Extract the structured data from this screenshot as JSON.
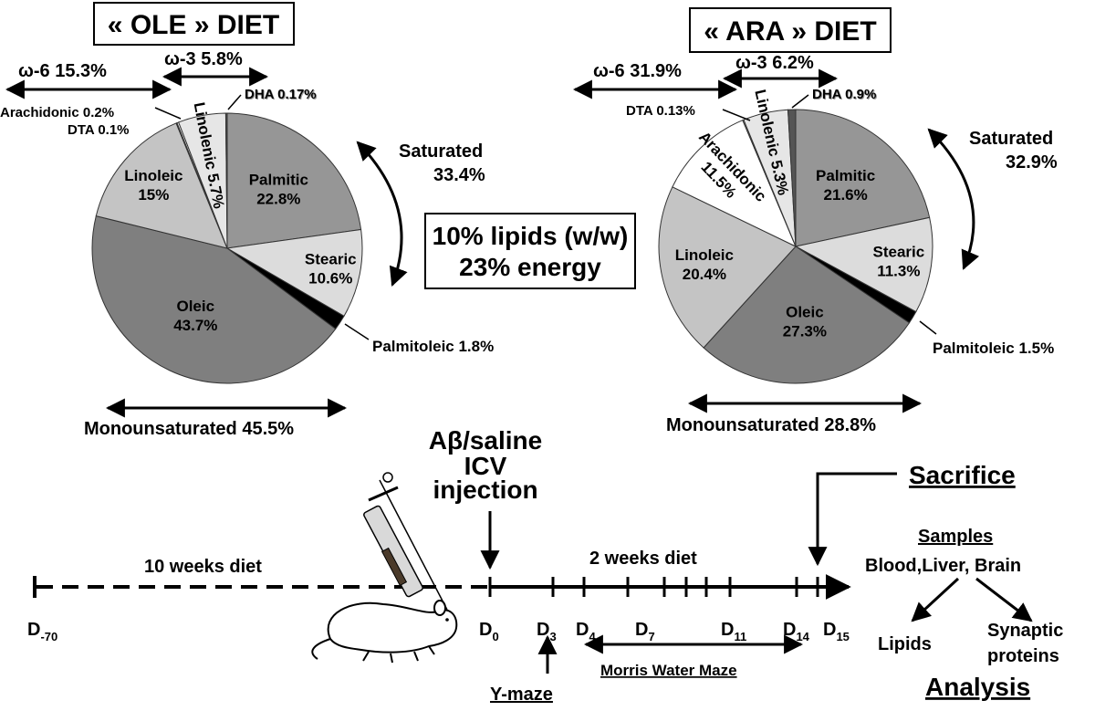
{
  "colors": {
    "palmitic": "#969696",
    "stearic": "#dcdcdc",
    "palmitoleic": "#000000",
    "oleic": "#7f7f7f",
    "linoleic": "#c4c4c4",
    "linolenic": "#e6e6e6",
    "arachidonic": "#ffffff",
    "dta": "#ffffff",
    "dha": "#555555"
  },
  "ole": {
    "title": "« OLE » DIET",
    "omega6": "ω-6 15.3%",
    "omega3": "ω-3 5.8%",
    "saturated": [
      "Saturated",
      "33.4%"
    ],
    "monounsaturated": "Monounsaturated 45.5%",
    "lipids": [
      "10% lipids (w/w)",
      "23% energy"
    ],
    "callouts": {
      "dha": "DHA 0.17%",
      "arachidonic": "Arachidonic 0.2%",
      "dta": "DTA 0.1%",
      "palmitoleic": "Palmitoleic 1.8%"
    },
    "slices": [
      {
        "key": "palmitic",
        "label": [
          "Palmitic",
          "22.8%"
        ],
        "value": 22.8,
        "color": "#969696"
      },
      {
        "key": "stearic",
        "label": [
          "Stearic",
          "10.6%"
        ],
        "value": 10.6,
        "color": "#dcdcdc"
      },
      {
        "key": "palmitoleic",
        "label": [],
        "value": 1.8,
        "color": "#000000"
      },
      {
        "key": "oleic",
        "label": [
          "Oleic",
          "43.7%"
        ],
        "value": 43.7,
        "color": "#7f7f7f"
      },
      {
        "key": "linoleic",
        "label": [
          "Linoleic",
          "15%"
        ],
        "value": 15.0,
        "color": "#c4c4c4"
      },
      {
        "key": "dta",
        "label": [],
        "value": 0.1,
        "color": "#ffffff"
      },
      {
        "key": "arachidonic",
        "label": [],
        "value": 0.2,
        "color": "#ffffff"
      },
      {
        "key": "linolenic",
        "label": [
          "Linolenic 5.7%"
        ],
        "value": 5.7,
        "color": "#e6e6e6",
        "rotate": true
      },
      {
        "key": "dha",
        "label": [],
        "value": 0.17,
        "color": "#555555"
      }
    ]
  },
  "ara": {
    "title": "« ARA » DIET",
    "omega6": "ω-6 31.9%",
    "omega3": "ω-3 6.2%",
    "saturated": [
      "Saturated",
      "32.9%"
    ],
    "monounsaturated": "Monounsaturated 28.8%",
    "callouts": {
      "dha": "DHA 0.9%",
      "dta": "DTA 0.13%",
      "palmitoleic": "Palmitoleic 1.5%"
    },
    "slices": [
      {
        "key": "palmitic",
        "label": [
          "Palmitic",
          "21.6%"
        ],
        "value": 21.6,
        "color": "#969696"
      },
      {
        "key": "stearic",
        "label": [
          "Stearic",
          "11.3%"
        ],
        "value": 11.3,
        "color": "#dcdcdc"
      },
      {
        "key": "palmitoleic",
        "label": [],
        "value": 1.5,
        "color": "#000000"
      },
      {
        "key": "oleic",
        "label": [
          "Oleic",
          "27.3%"
        ],
        "value": 27.3,
        "color": "#7f7f7f"
      },
      {
        "key": "linoleic",
        "label": [
          "Linoleic",
          "20.4%"
        ],
        "value": 20.4,
        "color": "#c4c4c4"
      },
      {
        "key": "arachidonic",
        "label": [
          "Arachidonic",
          "11.5%"
        ],
        "value": 11.5,
        "color": "#ffffff",
        "rotate": true
      },
      {
        "key": "dta",
        "label": [],
        "value": 0.13,
        "color": "#ffffff"
      },
      {
        "key": "linolenic",
        "label": [
          "Linolenic 5.3%"
        ],
        "value": 5.3,
        "color": "#e6e6e6",
        "rotate": true
      },
      {
        "key": "dha",
        "label": [],
        "value": 0.9,
        "color": "#555555"
      }
    ]
  },
  "timeline": {
    "injection": [
      "Aβ/saline",
      "ICV",
      "injection"
    ],
    "sacrifice": "Sacrifice",
    "samples": "Samples",
    "tissues": "Blood,Liver, Brain",
    "lipids": "Lipids",
    "synaptic": [
      "Synaptic",
      "proteins"
    ],
    "analysis": "Analysis",
    "diet10": "10 weeks diet",
    "diet2": "2 weeks diet",
    "ymaze": "Y-maze",
    "mwm": "Morris Water Maze",
    "days": [
      {
        "main": "D",
        "sub": "-70"
      },
      {
        "main": "D",
        "sub": "0"
      },
      {
        "main": "D",
        "sub": "3"
      },
      {
        "main": "D",
        "sub": "4"
      },
      {
        "main": "D",
        "sub": "7"
      },
      {
        "main": "D",
        "sub": "11"
      },
      {
        "main": "D",
        "sub": "14"
      },
      {
        "main": "D",
        "sub": "15"
      }
    ]
  }
}
